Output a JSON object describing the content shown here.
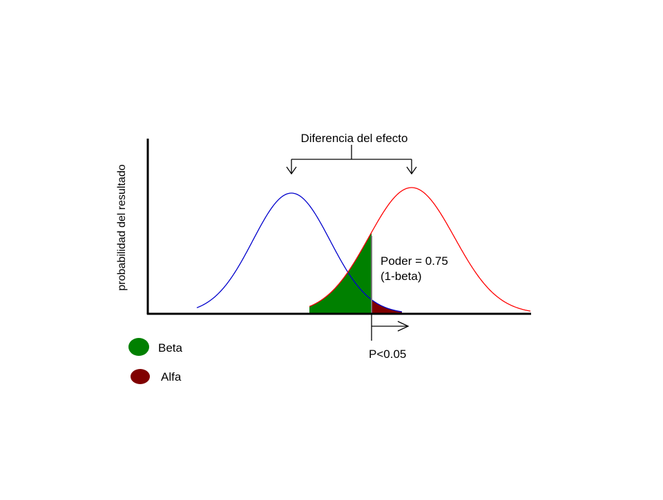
{
  "title": "Diferencia del efecto",
  "ylabel": "probabilidad del resultado",
  "power_label": "Poder = 0.75",
  "power_sub": "(1-beta)",
  "threshold_label": "P<0.05",
  "legend": [
    {
      "label": "Beta",
      "color": "#008000"
    },
    {
      "label": "Alfa",
      "color": "#800000"
    }
  ],
  "colors": {
    "null_curve": "#0000cc",
    "alt_curve": "#ff0000",
    "beta_fill": "#008000",
    "alfa_fill": "#800000",
    "axis": "#000000"
  }
}
